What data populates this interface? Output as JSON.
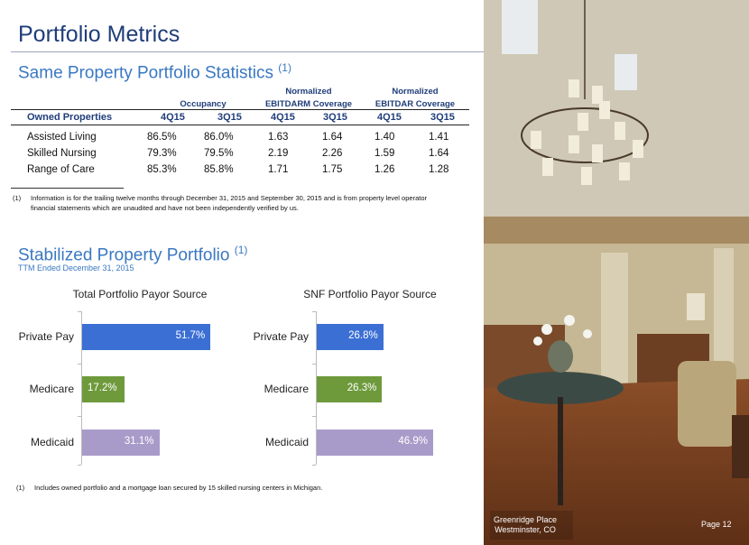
{
  "header": {
    "title": "Portfolio Metrics"
  },
  "stats": {
    "title": "Same Property Portfolio Statistics ",
    "note": "(1)",
    "groups": {
      "occupancy": "Occupancy",
      "normalized1": "Normalized",
      "ebitdarm": "EBITDARM Coverage",
      "normalized2": "Normalized",
      "ebitdar": "EBITDAR Coverage"
    },
    "columns": [
      "Owned Properties",
      "4Q15",
      "3Q15",
      "4Q15",
      "3Q15",
      "4Q15",
      "3Q15"
    ],
    "rows": [
      [
        "Assisted Living",
        "86.5%",
        "86.0%",
        "1.63",
        "1.64",
        "1.40",
        "1.41"
      ],
      [
        "Skilled Nursing",
        "79.3%",
        "79.5%",
        "2.19",
        "2.26",
        "1.59",
        "1.64"
      ],
      [
        "Range of Care",
        "85.3%",
        "85.8%",
        "1.71",
        "1.75",
        "1.26",
        "1.28"
      ]
    ],
    "footnote": {
      "num": "(1)",
      "line1": "Information is for the trailing twelve months through December 31, 2015 and September 30, 2015 and is from property level operator",
      "line2": "financial statements which are unaudited and have not been independently verified by us."
    }
  },
  "stabilized": {
    "title": "Stabilized Property Portfolio ",
    "note": "(1)",
    "subtitle": "TTM Ended December 31, 2015",
    "footnote": {
      "num": "(1)",
      "text": "Includes owned portfolio and a mortgage loan secured by 15 skilled nursing centers in Michigan."
    }
  },
  "chart_data": [
    {
      "type": "bar",
      "orientation": "horizontal",
      "title": "Total Portfolio Payor Source",
      "categories": [
        "Private Pay",
        "Medicare",
        "Medicaid"
      ],
      "values": [
        51.7,
        17.2,
        31.1
      ],
      "labels": [
        "51.7%",
        "17.2%",
        "31.1%"
      ],
      "colors": [
        "#3b6fd4",
        "#6e9a3c",
        "#a99bc9"
      ]
    },
    {
      "type": "bar",
      "orientation": "horizontal",
      "title": "SNF Portfolio Payor Source",
      "categories": [
        "Private Pay",
        "Medicare",
        "Medicaid"
      ],
      "values": [
        26.8,
        26.3,
        46.9
      ],
      "labels": [
        "26.8%",
        "26.3%",
        "46.9%"
      ],
      "colors": [
        "#3b6fd4",
        "#6e9a3c",
        "#a99bc9"
      ]
    }
  ],
  "photo": {
    "caption1": "Greenridge Place",
    "caption2": "Westminster, CO"
  },
  "footer": {
    "page": "Page 12"
  }
}
